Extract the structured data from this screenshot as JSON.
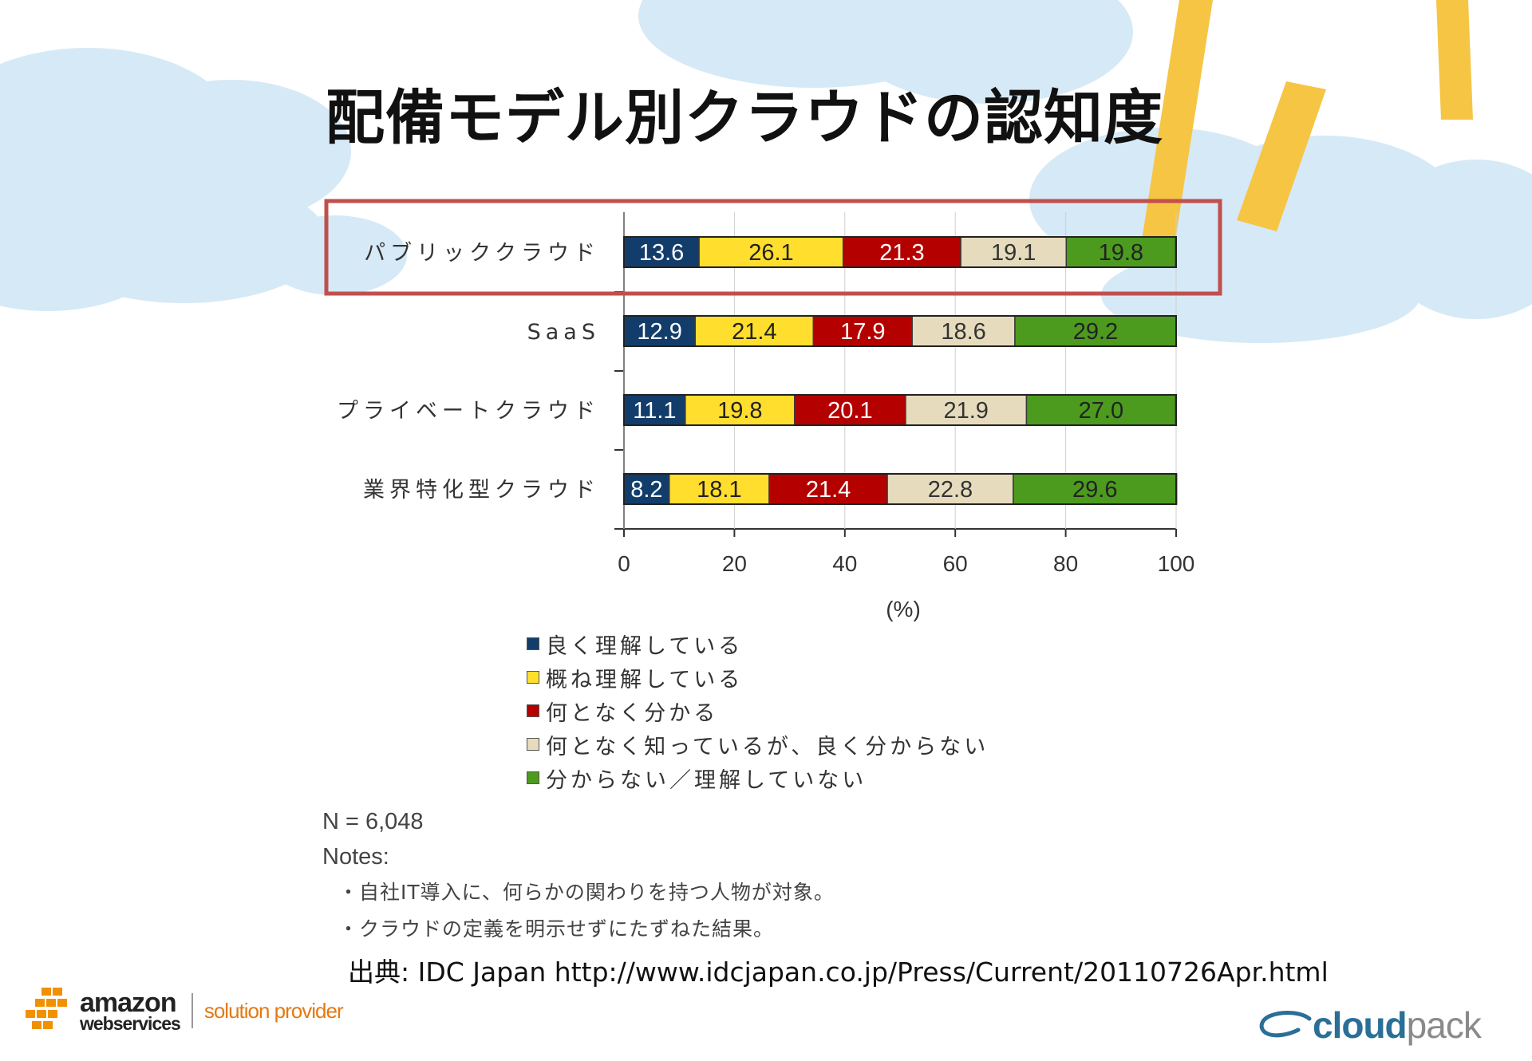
{
  "title": "配備モデル別クラウドの認知度",
  "chart_data": {
    "type": "bar",
    "orientation": "horizontal",
    "stacked": true,
    "categories": [
      "パブリッククラウド",
      "SaaS",
      "プライベートクラウド",
      "業界特化型クラウド"
    ],
    "series": [
      {
        "name": "良く理解している",
        "color": "#123d6b",
        "label_color": "#ffffff",
        "values": [
          13.6,
          12.9,
          11.1,
          8.2
        ]
      },
      {
        "name": "概ね理解している",
        "color": "#ffde2e",
        "label_color": "#222222",
        "values": [
          26.1,
          21.4,
          19.8,
          18.1
        ]
      },
      {
        "name": "何となく分かる",
        "color": "#b50000",
        "label_color": "#ffffff",
        "values": [
          21.3,
          17.9,
          20.1,
          21.4
        ]
      },
      {
        "name": "何となく知っているが、良く分からない",
        "color": "#e6dcbd",
        "label_color": "#333333",
        "values": [
          19.1,
          18.6,
          21.9,
          22.8
        ]
      },
      {
        "name": "分からない／理解していない",
        "color": "#4c9a1e",
        "label_color": "#222222",
        "values": [
          19.8,
          29.2,
          27.0,
          29.6
        ]
      }
    ],
    "value_labels": [
      [
        "13.6",
        "26.1",
        "21.3",
        "19.1",
        "19.8"
      ],
      [
        "12.9",
        "21.4",
        "17.9",
        "18.6",
        "29.2"
      ],
      [
        "11.1",
        "19.8",
        "20.1",
        "21.9",
        "27.0"
      ],
      [
        "8.2",
        "18.1",
        "21.4",
        "22.8",
        "29.6"
      ]
    ],
    "x_ticks": [
      "0",
      "20",
      "40",
      "60",
      "80",
      "100"
    ],
    "xlim": [
      0,
      100
    ],
    "xlabel": "(%)",
    "ylabel": "",
    "highlighted_category": "パブリッククラウド",
    "highlight_color": "#c0504d",
    "legend_position": "bottom"
  },
  "notes": {
    "n": "N = 6,048",
    "heading": "Notes:",
    "items": [
      "・自社IT導入に、何らかの関わりを持つ人物が対象。",
      "・クラウドの定義を明示せずにたずねた結果。"
    ]
  },
  "source": "出典: IDC Japan http://www.idcjapan.co.jp/Press/Current/20110726Apr.html",
  "logos": {
    "aws_amazon": "amazon",
    "aws_webservices": "webservices",
    "aws_solution": "solution provider",
    "cp_cloud": "cloud",
    "cp_pack": "pack"
  }
}
